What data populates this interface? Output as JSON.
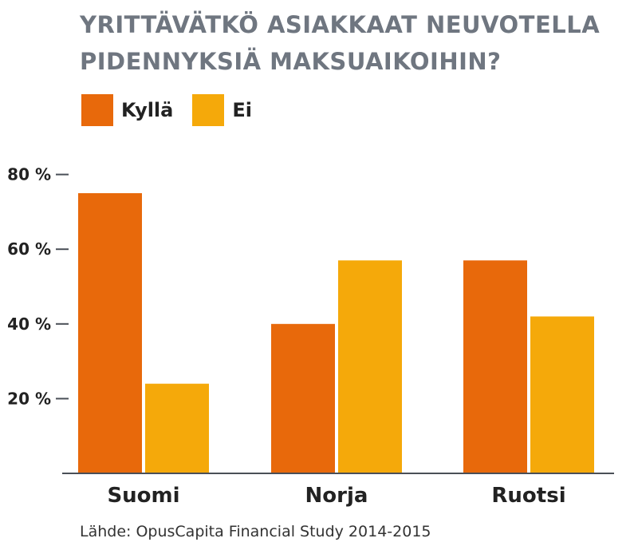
{
  "title_lines": [
    "YRITTÄVÄTKÖ ASIAKKAAT NEUVOTELLA",
    "PIDENNYKSIÄ MAKSUAIKOIHIN?"
  ],
  "source": "Lähde: OpusCapita Financial Study 2014-2015",
  "colors": {
    "kylla": "#e8690b",
    "ei": "#f5a90a",
    "title": "#6f7680",
    "axis": "#4a4f57"
  },
  "chart_data": {
    "type": "bar",
    "title": "YRITTÄVÄTKÖ ASIAKKAAT NEUVOTELLA PIDENNYKSIÄ MAKSUAIKOIHIN?",
    "categories": [
      "Suomi",
      "Norja",
      "Ruotsi"
    ],
    "series": [
      {
        "name": "Kyllä",
        "values": [
          75,
          40,
          57
        ]
      },
      {
        "name": "Ei",
        "values": [
          24,
          57,
          42
        ]
      }
    ],
    "yticks": [
      20,
      40,
      60,
      80
    ],
    "ytick_labels": [
      "20 %",
      "40 %",
      "60 %",
      "80 %"
    ],
    "ylim": [
      0,
      80
    ],
    "xlabel": "",
    "ylabel": "",
    "grid": false,
    "legend_position": "top-left"
  }
}
